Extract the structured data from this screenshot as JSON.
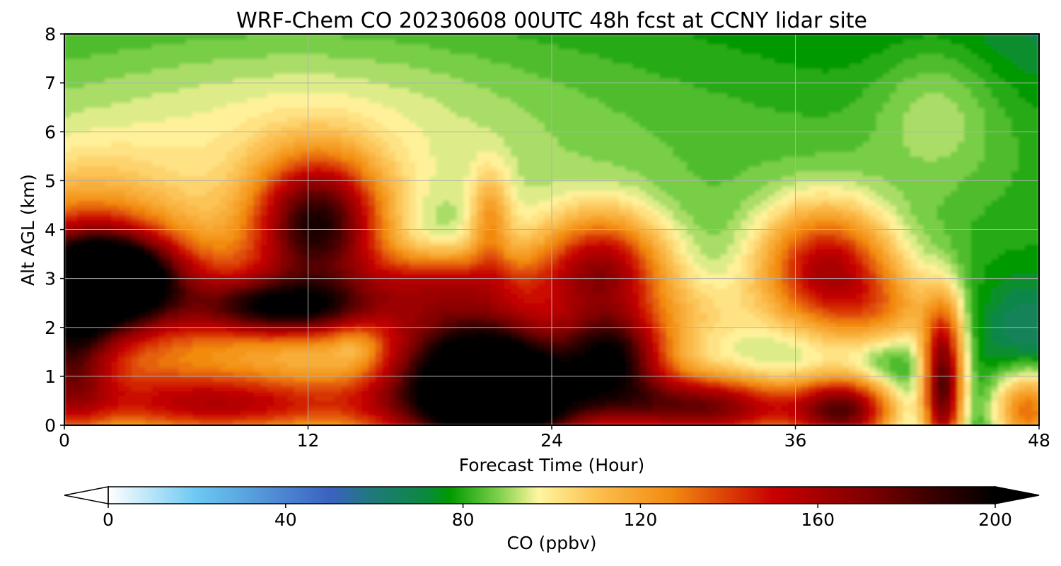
{
  "chart_data": {
    "type": "heatmap",
    "title": "WRF-Chem CO  20230608 00UTC 48h fcst at CCNY lidar site",
    "xlabel": "Forecast Time (Hour)",
    "ylabel": "Alt AGL (km)",
    "xlim": [
      0,
      48
    ],
    "ylim": [
      0,
      8
    ],
    "x_ticks": [
      "0",
      "12",
      "24",
      "36",
      "48"
    ],
    "y_ticks": [
      "0",
      "1",
      "2",
      "3",
      "4",
      "5",
      "6",
      "7",
      "8"
    ],
    "grid": true,
    "colorbar": {
      "label": "CO  (ppbv)",
      "range": [
        0,
        200
      ],
      "ticks": [
        "0",
        "40",
        "80",
        "120",
        "160",
        "200"
      ],
      "extend": "both",
      "color_stops": [
        {
          "value": 0,
          "color": "#ffffff"
        },
        {
          "value": 20,
          "color": "#6cc8f2"
        },
        {
          "value": 50,
          "color": "#3a62c0"
        },
        {
          "value": 60,
          "color": "#1e7a78"
        },
        {
          "value": 72,
          "color": "#0a8a3c"
        },
        {
          "value": 77,
          "color": "#009a00"
        },
        {
          "value": 88,
          "color": "#7ed04a"
        },
        {
          "value": 97,
          "color": "#fff6a0"
        },
        {
          "value": 110,
          "color": "#fcc050"
        },
        {
          "value": 127,
          "color": "#f28a10"
        },
        {
          "value": 150,
          "color": "#c80000"
        },
        {
          "value": 172,
          "color": "#7c0000"
        },
        {
          "value": 185,
          "color": "#3c0000"
        },
        {
          "value": 200,
          "color": "#000000"
        }
      ]
    },
    "field_features": [
      {
        "t": 0,
        "z": 5.2,
        "amp": 20,
        "st": 50,
        "sz": 3.0
      },
      {
        "t": 48,
        "z": 8,
        "amp": -6,
        "st": 8,
        "sz": 1.0
      },
      {
        "t": 12,
        "z": 6,
        "amp": 12,
        "st": 8,
        "sz": 1.5
      },
      {
        "t": 43,
        "z": 6.6,
        "amp": 12,
        "st": 2.2,
        "sz": 1.2
      },
      {
        "t": 2.2,
        "z": 3.0,
        "amp": 110,
        "st": 2.2,
        "sz": 0.6
      },
      {
        "t": 1,
        "z": 3.0,
        "amp": 65,
        "st": 3.5,
        "sz": 1.3
      },
      {
        "t": 0.2,
        "z": 1.4,
        "amp": 60,
        "st": 1.5,
        "sz": 1.2
      },
      {
        "t": 7,
        "z": 1.8,
        "amp": 30,
        "st": 5,
        "sz": 1.3
      },
      {
        "t": 8,
        "z": 0.4,
        "amp": 65,
        "st": 6,
        "sz": 0.5
      },
      {
        "t": 12.5,
        "z": 4.2,
        "amp": 95,
        "st": 2.2,
        "sz": 0.9
      },
      {
        "t": 11,
        "z": 2.4,
        "amp": 75,
        "st": 3,
        "sz": 0.4
      },
      {
        "t": 12,
        "z": 2.8,
        "amp": 25,
        "st": 6,
        "sz": 0.7
      },
      {
        "t": 20,
        "z": 0.9,
        "amp": 135,
        "st": 3.4,
        "sz": 1.25
      },
      {
        "t": 22,
        "z": 0.6,
        "amp": 70,
        "st": 2.2,
        "sz": 0.8
      },
      {
        "t": 21,
        "z": 4.2,
        "amp": 30,
        "st": 0.7,
        "sz": 0.7
      },
      {
        "t": 19,
        "z": 3.0,
        "amp": 25,
        "st": 3,
        "sz": 0.4
      },
      {
        "t": 18,
        "z": 3.9,
        "amp": -8,
        "st": 1.5,
        "sz": 0.5
      },
      {
        "t": 14.5,
        "z": 1.6,
        "amp": -15,
        "st": 0.9,
        "sz": 0.4
      },
      {
        "t": 26.5,
        "z": 3.2,
        "amp": 75,
        "st": 2.2,
        "sz": 0.8
      },
      {
        "t": 27,
        "z": 1.4,
        "amp": 90,
        "st": 1.8,
        "sz": 0.6
      },
      {
        "t": 29,
        "z": 0.4,
        "amp": 70,
        "st": 4,
        "sz": 0.5
      },
      {
        "t": 30.5,
        "z": 2.1,
        "amp": 25,
        "st": 3,
        "sz": 0.7
      },
      {
        "t": 33,
        "z": 0.3,
        "amp": 50,
        "st": 3,
        "sz": 0.5
      },
      {
        "t": 37.5,
        "z": 3.2,
        "amp": 75,
        "st": 2.3,
        "sz": 0.9
      },
      {
        "t": 40.5,
        "z": 2.2,
        "amp": 35,
        "st": 2,
        "sz": 0.7
      },
      {
        "t": 38.5,
        "z": 0.3,
        "amp": 95,
        "st": 1.8,
        "sz": 0.5
      },
      {
        "t": 43.3,
        "z": 0.8,
        "amp": 105,
        "st": 0.7,
        "sz": 1.1
      },
      {
        "t": 47.5,
        "z": 0.3,
        "amp": 60,
        "st": 1.3,
        "sz": 0.6
      },
      {
        "t": 40.5,
        "z": 1.4,
        "amp": -15,
        "st": 1.3,
        "sz": 0.5
      },
      {
        "t": 47.5,
        "z": 2.0,
        "amp": -12,
        "st": 1.5,
        "sz": 0.7
      }
    ]
  }
}
